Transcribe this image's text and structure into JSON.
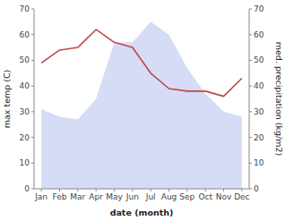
{
  "chart_data": {
    "type": "line",
    "categories": [
      "Jan",
      "Feb",
      "Mar",
      "Apr",
      "May",
      "Jun",
      "Jul",
      "Aug",
      "Sep",
      "Oct",
      "Nov",
      "Dec"
    ],
    "xlabel": "date (month)",
    "ylabel": "max temp (C)",
    "y2label": "med. precipitation (kg/m2)",
    "ylim": [
      0,
      70
    ],
    "yticks": [
      0,
      10,
      20,
      30,
      40,
      50,
      60,
      70
    ],
    "y2lim": [
      0,
      70
    ],
    "y2ticks": [
      0,
      10,
      20,
      30,
      40,
      50,
      60,
      70
    ],
    "series": [
      {
        "type": "area",
        "axis": "y2",
        "color": "#bbc5ef",
        "values": [
          31,
          28,
          27,
          35,
          57,
          57,
          65,
          60,
          47,
          37,
          30,
          28
        ]
      },
      {
        "type": "line",
        "color": "#c0474a",
        "values": [
          49,
          54,
          55,
          62,
          57,
          55,
          45,
          39,
          38,
          38,
          36,
          43
        ]
      }
    ]
  }
}
